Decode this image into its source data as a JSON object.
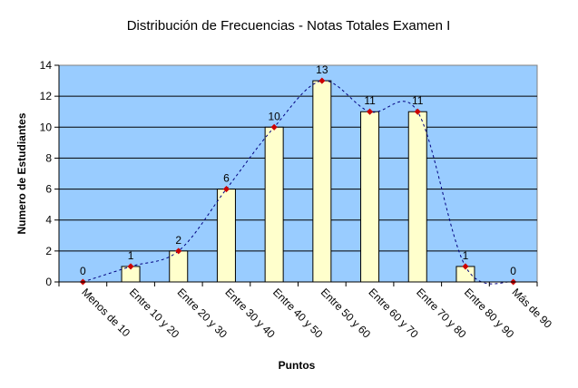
{
  "chart_data": {
    "type": "bar",
    "title": "Distribución de Frecuencias - Notas Totales Examen I",
    "xlabel": "Puntos",
    "ylabel": "Numero de Estudiantes",
    "categories": [
      "Menos de 10",
      "Entre 10 y 20",
      "Entre 20 y 30",
      "Entre 30 y 40",
      "Entre 40 y 50",
      "Entre 50 y 60",
      "Entre 60 y 70",
      "Entre 70 y 80",
      "Entre 80 y 90",
      "Más de 90"
    ],
    "values": [
      0,
      1,
      2,
      6,
      10,
      13,
      11,
      11,
      1,
      0
    ],
    "ylim": [
      0,
      14
    ],
    "yticks": [
      0,
      2,
      4,
      6,
      8,
      10,
      12,
      14
    ],
    "grid": true,
    "overlay": "smoothed dashed line with point markers",
    "colors": {
      "plot_background": "#99ccff",
      "bar_fill": "#ffffcc",
      "bar_stroke": "#000000",
      "marker": "#cc0000",
      "line": "#000080"
    }
  }
}
